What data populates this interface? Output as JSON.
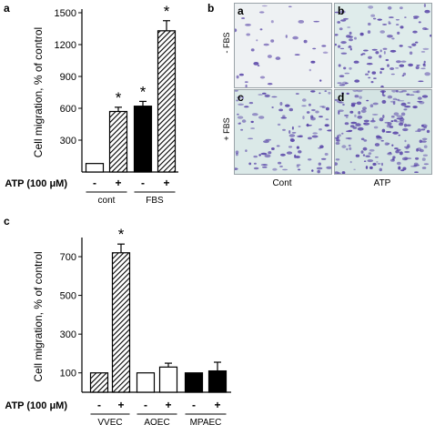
{
  "panels": {
    "a": "a",
    "b": "b",
    "c": "c"
  },
  "chart_data": [
    {
      "type": "bar",
      "panel": "a",
      "ylabel": "Cell migration, % of control",
      "yticks": [
        300,
        600,
        900,
        1200,
        1500
      ],
      "ylim": [
        0,
        1500
      ],
      "treatment_label": "ATP (100 μM)",
      "bars": [
        {
          "group": "cont",
          "atp": "-",
          "value": 80,
          "error": 0,
          "fill": "white",
          "star": false
        },
        {
          "group": "cont",
          "atp": "+",
          "value": 570,
          "error": 40,
          "fill": "hatched",
          "star": true
        },
        {
          "group": "FBS",
          "atp": "-",
          "value": 620,
          "error": 45,
          "fill": "black",
          "star": true
        },
        {
          "group": "FBS",
          "atp": "+",
          "value": 1330,
          "error": 95,
          "fill": "hatched",
          "star": true
        }
      ],
      "groups": [
        "cont",
        "FBS"
      ],
      "star": "*",
      "grid": false
    },
    {
      "type": "bar",
      "panel": "c",
      "ylabel": "Cell migration, % of control",
      "yticks": [
        100,
        300,
        500,
        700
      ],
      "ylim": [
        0,
        780
      ],
      "treatment_label": "ATP (100 μM)",
      "bars": [
        {
          "group": "VVEC",
          "atp": "-",
          "value": 100,
          "error": 0,
          "fill": "hatched",
          "star": false
        },
        {
          "group": "VVEC",
          "atp": "+",
          "value": 720,
          "error": 45,
          "fill": "hatched",
          "star": true
        },
        {
          "group": "AOEC",
          "atp": "-",
          "value": 100,
          "error": 0,
          "fill": "white",
          "star": false
        },
        {
          "group": "AOEC",
          "atp": "+",
          "value": 130,
          "error": 20,
          "fill": "white",
          "star": false
        },
        {
          "group": "MPAEC",
          "atp": "-",
          "value": 100,
          "error": 0,
          "fill": "black",
          "star": false
        },
        {
          "group": "MPAEC",
          "atp": "+",
          "value": 110,
          "error": 45,
          "fill": "black",
          "star": false
        }
      ],
      "groups": [
        "VVEC",
        "AOEC",
        "MPAEC"
      ],
      "star": "*",
      "grid": false
    }
  ],
  "micrographs": {
    "tiles": [
      {
        "letter": "a",
        "density": "low",
        "background": "#eef1f3"
      },
      {
        "letter": "b",
        "density": "mid",
        "background": "#dfeceb"
      },
      {
        "letter": "c",
        "density": "mid",
        "background": "#dbe9e8"
      },
      {
        "letter": "d",
        "density": "high",
        "background": "#d4e4e3"
      }
    ],
    "row_labels": [
      "- FBS",
      "+ FBS"
    ],
    "col_labels": [
      "Cont",
      "ATP"
    ],
    "stain_color": "#5a46a8"
  }
}
